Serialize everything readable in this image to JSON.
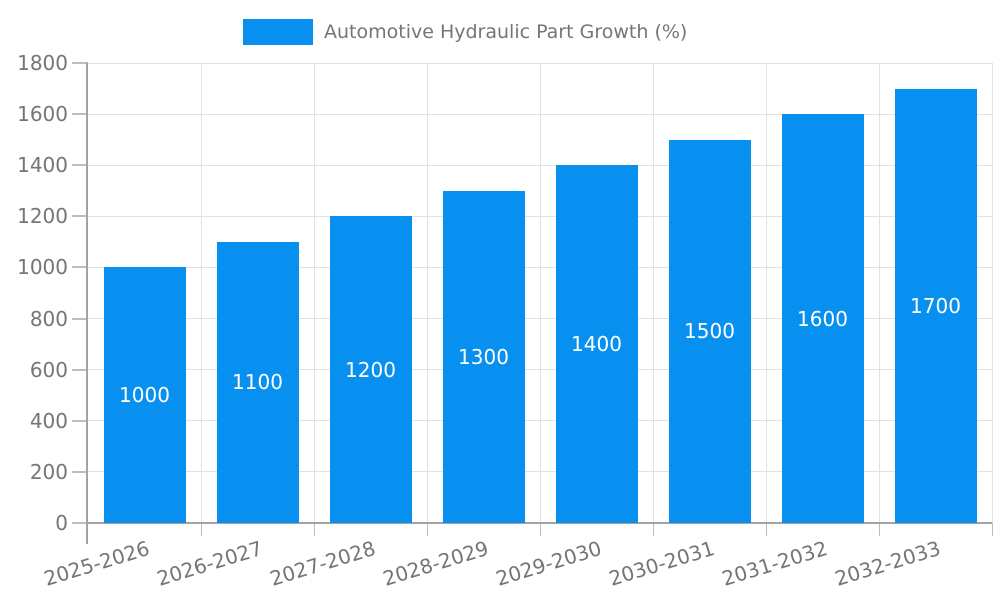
{
  "legend": {
    "label": "Automotive Hydraulic Part Growth (%)"
  },
  "colors": {
    "bar": "#0790F0",
    "bar_label": "#FFFFFF",
    "grid": "#E2E2E6",
    "axis": "#A3A3A3",
    "tick_mark": "#BDBDBD",
    "tick_label": "#757575",
    "legend_text": "#757575",
    "background": "#FFFFFF"
  },
  "chart_data": {
    "type": "bar",
    "title": "Automotive Hydraulic Part Growth (%)",
    "categories": [
      "2025-2026",
      "2026-2027",
      "2027-2028",
      "2028-2029",
      "2029-2030",
      "2030-2031",
      "2031-2032",
      "2032-2033"
    ],
    "values": [
      1000,
      1100,
      1200,
      1300,
      1400,
      1500,
      1600,
      1700
    ],
    "series": [
      {
        "name": "Automotive Hydraulic Part Growth (%)",
        "values": [
          1000,
          1100,
          1200,
          1300,
          1400,
          1500,
          1600,
          1700
        ]
      }
    ],
    "xlabel": "",
    "ylabel": "",
    "ylim": [
      0,
      1800
    ],
    "yticks": [
      0,
      200,
      400,
      600,
      800,
      1000,
      1200,
      1400,
      1600,
      1800
    ],
    "grid": true,
    "legend_position": "top",
    "bar_value_labels": "inside-center",
    "x_tick_rotation_deg": -17
  }
}
